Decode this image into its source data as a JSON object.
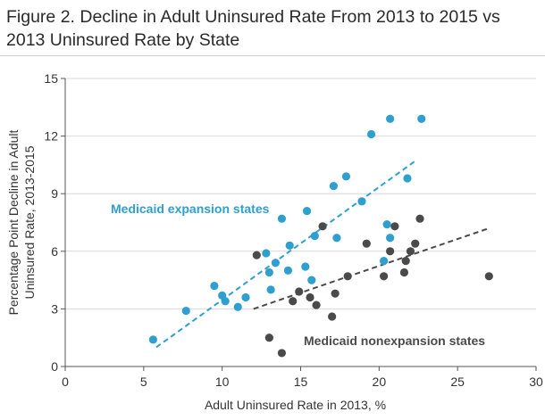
{
  "chart_data": {
    "type": "scatter",
    "title": "Figure 2. Decline in Adult Uninsured Rate From 2013 to 2015 vs 2013 Uninsured Rate by State",
    "xlabel": "Adult Uninsured Rate in 2013, %",
    "ylabel": [
      "Percentage Point Decline in Adult",
      "Uninsured Rate, 2013-2015"
    ],
    "xlim": [
      0,
      30
    ],
    "ylim": [
      0,
      15
    ],
    "xticks": [
      0,
      5,
      10,
      15,
      20,
      25,
      30
    ],
    "yticks": [
      0,
      3,
      6,
      9,
      12,
      15
    ],
    "grid": true,
    "series": [
      {
        "name": "Medicaid expansion states",
        "color": "#2e9fcf",
        "points": [
          {
            "x": 5.6,
            "y": 1.4
          },
          {
            "x": 7.7,
            "y": 2.9
          },
          {
            "x": 9.5,
            "y": 4.2
          },
          {
            "x": 10.0,
            "y": 3.7
          },
          {
            "x": 10.2,
            "y": 3.4
          },
          {
            "x": 11.0,
            "y": 3.1
          },
          {
            "x": 11.5,
            "y": 3.6
          },
          {
            "x": 12.8,
            "y": 5.9
          },
          {
            "x": 13.0,
            "y": 4.9
          },
          {
            "x": 13.1,
            "y": 4.0
          },
          {
            "x": 13.4,
            "y": 5.4
          },
          {
            "x": 13.8,
            "y": 7.7
          },
          {
            "x": 14.2,
            "y": 5.0
          },
          {
            "x": 14.3,
            "y": 6.3
          },
          {
            "x": 15.3,
            "y": 5.2
          },
          {
            "x": 15.4,
            "y": 8.1
          },
          {
            "x": 15.7,
            "y": 4.5
          },
          {
            "x": 15.9,
            "y": 6.8
          },
          {
            "x": 17.1,
            "y": 9.4
          },
          {
            "x": 17.3,
            "y": 6.7
          },
          {
            "x": 17.9,
            "y": 9.9
          },
          {
            "x": 18.9,
            "y": 8.6
          },
          {
            "x": 19.5,
            "y": 12.1
          },
          {
            "x": 20.3,
            "y": 5.5
          },
          {
            "x": 20.5,
            "y": 7.4
          },
          {
            "x": 20.7,
            "y": 6.7
          },
          {
            "x": 20.7,
            "y": 12.9
          },
          {
            "x": 21.8,
            "y": 9.8
          },
          {
            "x": 22.7,
            "y": 12.9
          }
        ],
        "trendline": {
          "x": [
            5.8,
            22.3
          ],
          "y": [
            1.0,
            10.7
          ]
        }
      },
      {
        "name": "Medicaid nonexpansion states",
        "color": "#4a4a4a",
        "points": [
          {
            "x": 12.2,
            "y": 5.8
          },
          {
            "x": 13.0,
            "y": 1.5
          },
          {
            "x": 13.8,
            "y": 0.7
          },
          {
            "x": 14.5,
            "y": 3.4
          },
          {
            "x": 14.9,
            "y": 3.9
          },
          {
            "x": 15.6,
            "y": 3.6
          },
          {
            "x": 16.0,
            "y": 3.2
          },
          {
            "x": 16.4,
            "y": 7.3
          },
          {
            "x": 17.0,
            "y": 2.6
          },
          {
            "x": 17.2,
            "y": 3.8
          },
          {
            "x": 18.0,
            "y": 4.7
          },
          {
            "x": 19.2,
            "y": 6.4
          },
          {
            "x": 20.3,
            "y": 4.7
          },
          {
            "x": 20.7,
            "y": 6.0
          },
          {
            "x": 21.0,
            "y": 7.3
          },
          {
            "x": 21.6,
            "y": 4.9
          },
          {
            "x": 21.7,
            "y": 5.5
          },
          {
            "x": 22.0,
            "y": 6.0
          },
          {
            "x": 22.3,
            "y": 6.4
          },
          {
            "x": 22.6,
            "y": 7.7
          },
          {
            "x": 27.0,
            "y": 4.7
          }
        ],
        "trendline": {
          "x": [
            12.0,
            27.0
          ],
          "y": [
            3.0,
            7.2
          ]
        }
      }
    ],
    "annotations": [
      {
        "text": "Medicaid expansion states",
        "series": 0
      },
      {
        "text": "Medicaid nonexpansion states",
        "series": 1
      }
    ]
  }
}
